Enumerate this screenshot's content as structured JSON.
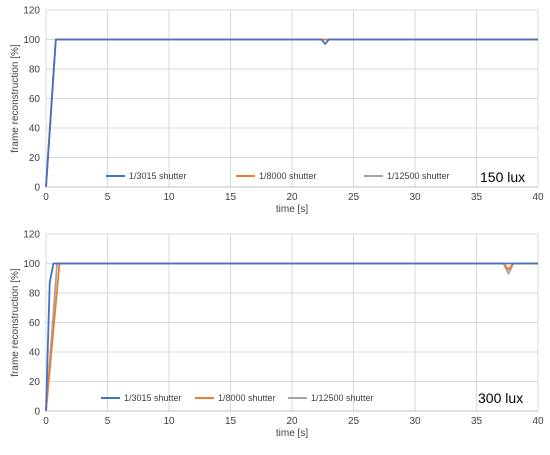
{
  "chart_data": [
    {
      "type": "line",
      "xlabel": "time [s]",
      "ylabel": "frame reconstruction [%]",
      "xlim": [
        0,
        40
      ],
      "ylim": [
        0,
        120
      ],
      "xticks": [
        0,
        5,
        10,
        15,
        20,
        25,
        30,
        35,
        40
      ],
      "yticks": [
        0,
        20,
        40,
        60,
        80,
        100,
        120
      ],
      "grid": true,
      "legend_position": "bottom",
      "annotation": "150 lux",
      "series": [
        {
          "name": "1/3015 shutter",
          "color": "#4472C4",
          "x": [
            0,
            0.8,
            22.4,
            22.7,
            23.0,
            40
          ],
          "y": [
            0,
            100,
            100,
            97,
            100,
            100
          ]
        },
        {
          "name": "1/8000 shutter",
          "color": "#ED7D31",
          "x": [
            0,
            0.8,
            40
          ],
          "y": [
            0,
            100,
            100
          ]
        },
        {
          "name": "1/12500 shutter",
          "color": "#A5A5A5",
          "x": [
            0,
            0.8,
            40
          ],
          "y": [
            0,
            100,
            100
          ]
        }
      ]
    },
    {
      "type": "line",
      "xlabel": "time [s]",
      "ylabel": "frame reconstruction [%]",
      "xlim": [
        0,
        40
      ],
      "ylim": [
        0,
        120
      ],
      "xticks": [
        0,
        5,
        10,
        15,
        20,
        25,
        30,
        35,
        40
      ],
      "yticks": [
        0,
        20,
        40,
        60,
        80,
        100,
        120
      ],
      "grid": true,
      "legend_position": "bottom",
      "annotation": "300 lux",
      "series": [
        {
          "name": "1/3015 shutter",
          "color": "#4472C4",
          "x": [
            0,
            0.3,
            0.6,
            40
          ],
          "y": [
            0,
            87,
            100,
            100
          ]
        },
        {
          "name": "1/8000 shutter",
          "color": "#ED7D31",
          "x": [
            0,
            1.1,
            37.2,
            37.6,
            38.0,
            40
          ],
          "y": [
            0,
            100,
            100,
            96,
            100,
            100
          ]
        },
        {
          "name": "1/12500 shutter",
          "color": "#A5A5A5",
          "x": [
            0,
            0.9,
            37.2,
            37.6,
            38.0,
            40
          ],
          "y": [
            0,
            100,
            100,
            93,
            100,
            100
          ]
        }
      ]
    }
  ]
}
